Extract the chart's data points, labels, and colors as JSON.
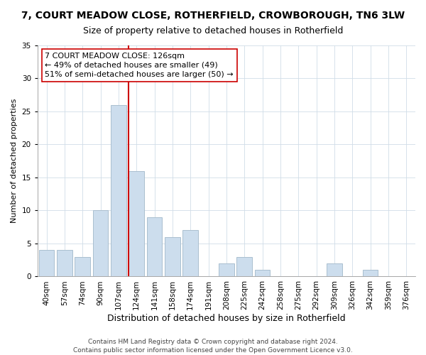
{
  "title": "7, COURT MEADOW CLOSE, ROTHERFIELD, CROWBOROUGH, TN6 3LW",
  "subtitle": "Size of property relative to detached houses in Rotherfield",
  "xlabel": "Distribution of detached houses by size in Rotherfield",
  "ylabel": "Number of detached properties",
  "bar_labels": [
    "40sqm",
    "57sqm",
    "74sqm",
    "90sqm",
    "107sqm",
    "124sqm",
    "141sqm",
    "158sqm",
    "174sqm",
    "191sqm",
    "208sqm",
    "225sqm",
    "242sqm",
    "258sqm",
    "275sqm",
    "292sqm",
    "309sqm",
    "326sqm",
    "342sqm",
    "359sqm",
    "376sqm"
  ],
  "bar_values": [
    4,
    4,
    3,
    10,
    26,
    16,
    9,
    6,
    7,
    0,
    2,
    3,
    1,
    0,
    0,
    0,
    2,
    0,
    1,
    0,
    0
  ],
  "bar_color": "#ccdded",
  "bar_edge_color": "#aabfcf",
  "vline_index": 5,
  "vline_color": "#cc0000",
  "ylim": [
    0,
    35
  ],
  "yticks": [
    0,
    5,
    10,
    15,
    20,
    25,
    30,
    35
  ],
  "annotation_line1": "7 COURT MEADOW CLOSE: 126sqm",
  "annotation_line2": "← 49% of detached houses are smaller (49)",
  "annotation_line3": "51% of semi-detached houses are larger (50) →",
  "footer1": "Contains HM Land Registry data © Crown copyright and database right 2024.",
  "footer2": "Contains public sector information licensed under the Open Government Licence v3.0.",
  "title_fontsize": 10,
  "subtitle_fontsize": 9,
  "xlabel_fontsize": 9,
  "ylabel_fontsize": 8,
  "tick_fontsize": 7.5,
  "annotation_fontsize": 8,
  "footer_fontsize": 6.5
}
